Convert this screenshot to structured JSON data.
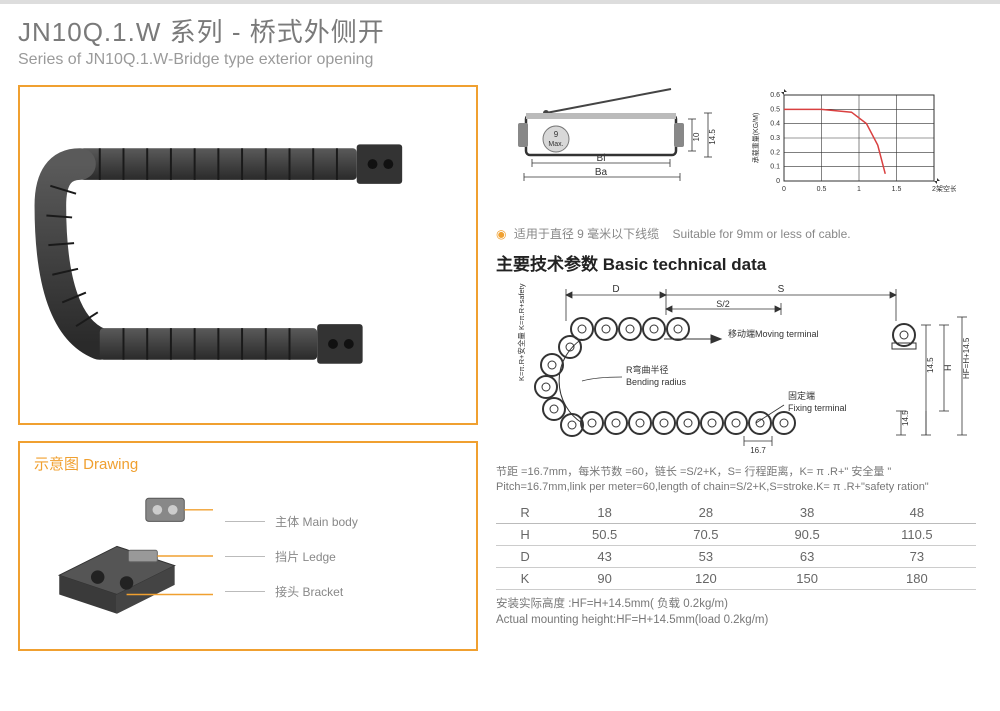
{
  "header": {
    "title_cn": "JN10Q.1.W 系列 - 桥式外侧开",
    "title_en": "Series of JN10Q.1.W-Bridge type exterior opening"
  },
  "drawing": {
    "title": "示意图 Drawing",
    "labels": {
      "main_body": "主体 Main body",
      "ledge": "挡片 Ledge",
      "bracket": "接头 Bracket"
    }
  },
  "cross_section": {
    "max_label": "9 Max.",
    "dim_bi": "Bi",
    "dim_ba": "Ba",
    "dim_h1": "10",
    "dim_h2": "14.5"
  },
  "load_chart": {
    "type": "line",
    "y_label": "承载重量(KG/M)",
    "x_label": "架空长度 (M)",
    "x_ticks": [
      0,
      0.5,
      1.0,
      1.5,
      2.0
    ],
    "y_ticks": [
      0,
      0.1,
      0.2,
      0.3,
      0.4,
      0.5,
      0.6
    ],
    "xlim": [
      0,
      2.0
    ],
    "ylim": [
      0,
      0.6
    ],
    "series_x": [
      0,
      0.5,
      0.9,
      1.1,
      1.25,
      1.35
    ],
    "series_y": [
      0.5,
      0.5,
      0.48,
      0.4,
      0.25,
      0.05
    ],
    "line_color": "#d94040",
    "grid_color": "#333333",
    "background_color": "#ffffff",
    "line_width": 1.5,
    "axis_fontsize": 7
  },
  "note": {
    "cn": "适用于直径 9 毫米以下线缆",
    "en": "Suitable for 9mm or less of cable."
  },
  "tech_section": {
    "title": "主要技术参数 Basic technical data"
  },
  "chain_diagram": {
    "labels": {
      "D": "D",
      "S": "S",
      "S2": "S/2",
      "moving_cn": "移动端",
      "moving_en": "Moving terminal",
      "radius_cn": "R弯曲半径",
      "radius_en": "Bending radius",
      "fixing_cn": "固定端",
      "fixing_en": "Fixing terminal",
      "side_formula": "K=π.R+安全量 K=π.R+safety ration",
      "pitch": "16.7",
      "h145": "14.5",
      "H": "H",
      "Hf": "HF=H+14.5"
    }
  },
  "pitch_note": {
    "cn": "节距 =16.7mm，每米节数 =60，链长 =S/2+K，S= 行程距离，K= π .R+\" 安全量 \"",
    "en": "Pitch=16.7mm,link per meter=60,length of chain=S/2+K,S=stroke.K= π .R+\"safety ration\""
  },
  "data_table": {
    "columns": [
      "R",
      "18",
      "28",
      "38",
      "48"
    ],
    "rows": [
      [
        "H",
        "50.5",
        "70.5",
        "90.5",
        "110.5"
      ],
      [
        "D",
        "43",
        "53",
        "63",
        "73"
      ],
      [
        "K",
        "90",
        "120",
        "150",
        "180"
      ]
    ]
  },
  "mount_note": {
    "cn": "安装实际高度 :HF=H+14.5mm( 负载 0.2kg/m)",
    "en": "Actual mounting height:HF=H+14.5mm(load 0.2kg/m)"
  },
  "colors": {
    "accent": "#f0a030",
    "text_gray": "#7a7a7a",
    "dark": "#333333"
  }
}
